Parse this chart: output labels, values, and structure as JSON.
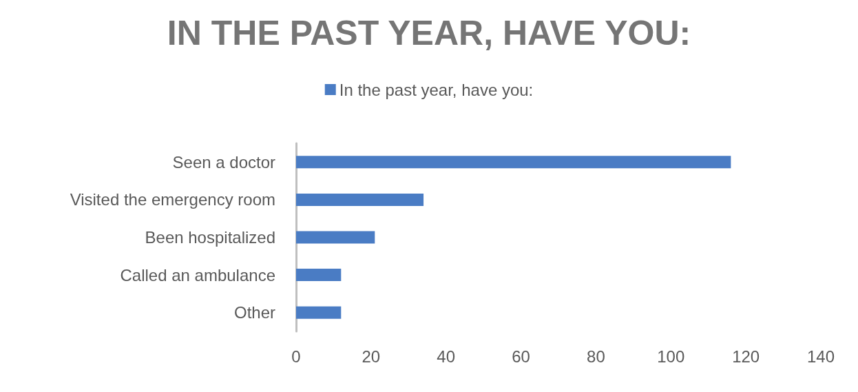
{
  "chart_data": {
    "type": "bar",
    "orientation": "horizontal",
    "title": "IN THE PAST YEAR, HAVE YOU:",
    "categories": [
      "Seen a doctor",
      "Visited the emergency room",
      "Been hospitalized",
      "Called an ambulance",
      "Other"
    ],
    "series": [
      {
        "name": "In the past year, have you:",
        "color": "#4a7cc4",
        "values": [
          116,
          34,
          21,
          12,
          12
        ]
      }
    ],
    "xlim": [
      0,
      140
    ],
    "xticks": [
      0,
      20,
      40,
      60,
      80,
      100,
      120,
      140
    ],
    "grid": false,
    "legend": "top"
  }
}
